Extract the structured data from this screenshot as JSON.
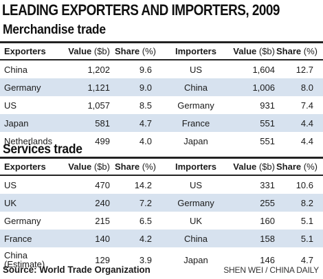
{
  "title": "LEADING EXPORTERS AND IMPORTERS, 2009",
  "headers": {
    "exporters": "Exporters",
    "importers": "Importers",
    "value": "Value",
    "value_unit": "($b)",
    "share": "Share",
    "share_unit": "(%)"
  },
  "merchandise": {
    "title": "Merchandise trade",
    "rows": [
      {
        "exp": "China",
        "exp_value": "1,202",
        "exp_share": "9.6",
        "imp": "US",
        "imp_value": "1,604",
        "imp_share": "12.7"
      },
      {
        "exp": "Germany",
        "exp_value": "1,121",
        "exp_share": "9.0",
        "imp": "China",
        "imp_value": "1,006",
        "imp_share": "8.0"
      },
      {
        "exp": "US",
        "exp_value": "1,057",
        "exp_share": "8.5",
        "imp": "Germany",
        "imp_value": "931",
        "imp_share": "7.4"
      },
      {
        "exp": "Japan",
        "exp_value": "581",
        "exp_share": "4.7",
        "imp": "France",
        "imp_value": "551",
        "imp_share": "4.4"
      },
      {
        "exp": "Netherlands",
        "exp_value": "499",
        "exp_share": "4.0",
        "imp": "Japan",
        "imp_value": "551",
        "imp_share": "4.4"
      }
    ]
  },
  "services": {
    "title": "Services trade",
    "rows": [
      {
        "exp": "US",
        "exp_value": "470",
        "exp_share": "14.2",
        "imp": "US",
        "imp_value": "331",
        "imp_share": "10.6"
      },
      {
        "exp": "UK",
        "exp_value": "240",
        "exp_share": "7.2",
        "imp": "Germany",
        "imp_value": "255",
        "imp_share": "8.2"
      },
      {
        "exp": "Germany",
        "exp_value": "215",
        "exp_share": "6.5",
        "imp": "UK",
        "imp_value": "160",
        "imp_share": "5.1"
      },
      {
        "exp": "France",
        "exp_value": "140",
        "exp_share": "4.2",
        "imp": "China",
        "imp_value": "158",
        "imp_share": "5.1"
      },
      {
        "exp": "China\n(Estimate)",
        "exp_value": "129",
        "exp_share": "3.9",
        "imp": "Japan",
        "imp_value": "146",
        "imp_share": "4.7"
      }
    ]
  },
  "source": "Source: World Trade Organization",
  "credit": "SHEN WEI / CHINA DAILY",
  "colors": {
    "row_band": "#d7e2ef",
    "rule": "#222222",
    "text": "#1a1a1a"
  }
}
